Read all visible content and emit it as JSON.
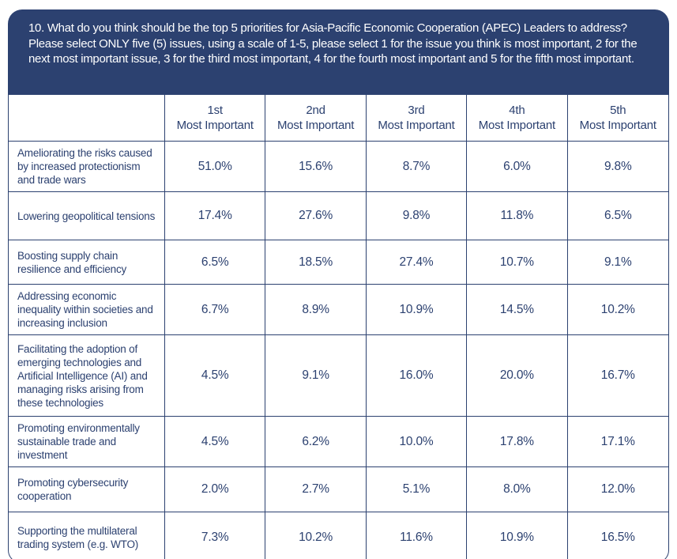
{
  "colors": {
    "navy": "#2c4170",
    "background": "#ffffff",
    "header_text": "#ffffff"
  },
  "question": {
    "text": "10. What do you think should be the top 5 priorities for Asia-Pacific Economic Cooperation (APEC) Leaders to address? Please select ONLY five (5) issues, using a scale of 1-5, please select 1 for the issue you think is most important, 2 for the next most important issue, 3 for the third most important, 4 for the fourth most important and 5 for the fifth most important."
  },
  "table": {
    "columns": [
      {
        "rank": "1st",
        "label": "Most Important"
      },
      {
        "rank": "2nd",
        "label": "Most Important"
      },
      {
        "rank": "3rd",
        "label": "Most Important"
      },
      {
        "rank": "4th",
        "label": "Most Important"
      },
      {
        "rank": "5th",
        "label": "Most Important"
      }
    ],
    "rows": [
      {
        "label": "Ameliorating the risks caused by increased protectionism and trade wars",
        "values": [
          "51.0%",
          "15.6%",
          "8.7%",
          "6.0%",
          "9.8%"
        ]
      },
      {
        "label": "Lowering geopolitical tensions",
        "values": [
          "17.4%",
          "27.6%",
          "9.8%",
          "11.8%",
          "6.5%"
        ]
      },
      {
        "label": "Boosting supply chain resilience and efficiency",
        "values": [
          "6.5%",
          "18.5%",
          "27.4%",
          "10.7%",
          "9.1%"
        ]
      },
      {
        "label": "Addressing economic inequality within societies and increasing inclusion",
        "values": [
          "6.7%",
          "8.9%",
          "10.9%",
          "14.5%",
          "10.2%"
        ]
      },
      {
        "label": "Facilitating the adoption of emerging technologies and Artificial Intelligence (AI) and managing risks arising from these technologies",
        "values": [
          "4.5%",
          "9.1%",
          "16.0%",
          "20.0%",
          "16.7%"
        ]
      },
      {
        "label": "Promoting environmentally sustainable trade and investment",
        "values": [
          "4.5%",
          "6.2%",
          "10.0%",
          "17.8%",
          "17.1%"
        ]
      },
      {
        "label": "Promoting cybersecurity cooperation",
        "values": [
          "2.0%",
          "2.7%",
          "5.1%",
          "8.0%",
          "12.0%"
        ]
      },
      {
        "label": "Supporting the multilateral trading system (e.g. WTO)",
        "values": [
          "7.3%",
          "10.2%",
          "11.6%",
          "10.9%",
          "16.5%"
        ]
      }
    ]
  },
  "chart_data": {
    "type": "table",
    "title": "10. What do you think should be the top 5 priorities for Asia-Pacific Economic Cooperation (APEC) Leaders to address? Please select ONLY five (5) issues, using a scale of 1-5, please select 1 for the issue you think is most important, 2 for the next most important issue, 3 for the third most important, 4 for the fourth most important and 5 for the fifth most important.",
    "unit": "%",
    "categories": [
      "1st Most Important",
      "2nd Most Important",
      "3rd Most Important",
      "4th Most Important",
      "5th Most Important"
    ],
    "series": [
      {
        "name": "Ameliorating the risks caused by increased protectionism and trade wars",
        "values": [
          51.0,
          15.6,
          8.7,
          6.0,
          9.8
        ]
      },
      {
        "name": "Lowering geopolitical tensions",
        "values": [
          17.4,
          27.6,
          9.8,
          11.8,
          6.5
        ]
      },
      {
        "name": "Boosting supply chain resilience and efficiency",
        "values": [
          6.5,
          18.5,
          27.4,
          10.7,
          9.1
        ]
      },
      {
        "name": "Addressing economic inequality within societies and increasing inclusion",
        "values": [
          6.7,
          8.9,
          10.9,
          14.5,
          10.2
        ]
      },
      {
        "name": "Facilitating the adoption of emerging technologies and Artificial Intelligence (AI) and managing risks arising from these technologies",
        "values": [
          4.5,
          9.1,
          16.0,
          20.0,
          16.7
        ]
      },
      {
        "name": "Promoting environmentally sustainable trade and investment",
        "values": [
          4.5,
          6.2,
          10.0,
          17.8,
          17.1
        ]
      },
      {
        "name": "Promoting cybersecurity cooperation",
        "values": [
          2.0,
          2.7,
          5.1,
          8.0,
          12.0
        ]
      },
      {
        "name": "Supporting the multilateral trading system (e.g. WTO)",
        "values": [
          7.3,
          10.2,
          11.6,
          10.9,
          16.5
        ]
      }
    ]
  }
}
